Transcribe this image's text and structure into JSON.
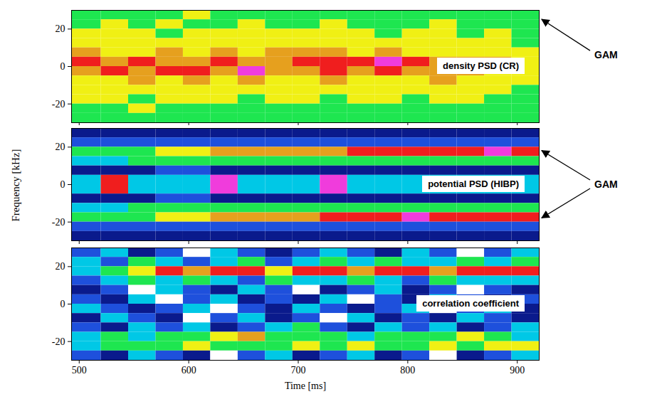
{
  "chart_data": {
    "type": "heatmap",
    "xlabel": "Time [ms]",
    "ylabel": "Frequency [kHz]",
    "xlim": [
      493,
      920
    ],
    "xticks": [
      500,
      600,
      700,
      800,
      900
    ],
    "ylim": [
      -30,
      30
    ],
    "yticks": [
      -20,
      0,
      20
    ],
    "x_edges": [
      493,
      520,
      545,
      570,
      595,
      620,
      645,
      670,
      695,
      720,
      745,
      770,
      795,
      820,
      845,
      870,
      895,
      920
    ],
    "y_edges": [
      30,
      25,
      20,
      15,
      10,
      5,
      0,
      -5,
      -10,
      -15,
      -20,
      -25,
      -30
    ],
    "zlim": [
      0,
      8
    ],
    "colors": [
      "#ffffff",
      "#0a1a8c",
      "#1e50dc",
      "#00c8e6",
      "#1ee650",
      "#f0f014",
      "#e6a01e",
      "#f01e1e",
      "#f03cdc"
    ],
    "panels": [
      {
        "label": "density PSD (CR)",
        "annotation": {
          "text": "GAM",
          "targets": [
            25
          ]
        },
        "cells": [
          [
            4,
            4,
            4,
            4,
            5,
            4,
            4,
            4,
            4,
            4,
            4,
            4,
            4,
            4,
            4,
            4,
            4
          ],
          [
            4,
            5,
            4,
            5,
            4,
            4,
            5,
            4,
            4,
            5,
            4,
            4,
            4,
            5,
            4,
            4,
            4
          ],
          [
            5,
            5,
            5,
            4,
            5,
            5,
            5,
            5,
            5,
            5,
            5,
            4,
            5,
            5,
            4,
            5,
            4
          ],
          [
            5,
            5,
            5,
            5,
            5,
            5,
            5,
            5,
            5,
            5,
            5,
            5,
            5,
            5,
            5,
            5,
            4
          ],
          [
            6,
            5,
            5,
            6,
            5,
            6,
            5,
            6,
            6,
            6,
            5,
            6,
            5,
            5,
            5,
            5,
            5
          ],
          [
            7,
            6,
            7,
            6,
            6,
            7,
            6,
            6,
            7,
            7,
            7,
            8,
            7,
            6,
            6,
            6,
            5
          ],
          [
            6,
            7,
            6,
            7,
            7,
            6,
            8,
            6,
            6,
            7,
            6,
            7,
            6,
            6,
            6,
            5,
            5
          ],
          [
            5,
            5,
            6,
            5,
            6,
            5,
            6,
            5,
            5,
            6,
            5,
            5,
            5,
            6,
            5,
            5,
            5
          ],
          [
            5,
            5,
            5,
            5,
            5,
            5,
            5,
            5,
            5,
            5,
            5,
            5,
            5,
            5,
            5,
            5,
            4
          ],
          [
            5,
            5,
            4,
            5,
            5,
            5,
            4,
            5,
            5,
            4,
            5,
            5,
            4,
            5,
            5,
            4,
            4
          ],
          [
            4,
            4,
            5,
            4,
            4,
            4,
            4,
            4,
            4,
            4,
            4,
            4,
            4,
            4,
            4,
            4,
            4
          ],
          [
            4,
            4,
            4,
            4,
            4,
            4,
            4,
            4,
            4,
            4,
            4,
            4,
            4,
            4,
            4,
            4,
            4
          ]
        ]
      },
      {
        "label": "potential PSD (HIBP)",
        "annotation": {
          "text": "GAM",
          "targets": [
            18,
            -18
          ]
        },
        "cells": [
          [
            1,
            1,
            1,
            1,
            1,
            1,
            1,
            1,
            1,
            1,
            1,
            1,
            1,
            1,
            1,
            1,
            1
          ],
          [
            2,
            2,
            2,
            2,
            2,
            2,
            2,
            2,
            2,
            2,
            2,
            2,
            2,
            2,
            2,
            2,
            2
          ],
          [
            4,
            4,
            4,
            5,
            5,
            6,
            6,
            6,
            6,
            6,
            7,
            7,
            7,
            7,
            7,
            8,
            7
          ],
          [
            3,
            3,
            4,
            4,
            4,
            4,
            4,
            4,
            4,
            4,
            4,
            4,
            4,
            4,
            4,
            4,
            4
          ],
          [
            1,
            1,
            1,
            2,
            2,
            1,
            1,
            1,
            1,
            1,
            1,
            1,
            1,
            1,
            1,
            1,
            1
          ],
          [
            3,
            7,
            3,
            3,
            3,
            8,
            3,
            3,
            3,
            8,
            3,
            3,
            3,
            3,
            3,
            3,
            3
          ],
          [
            3,
            7,
            3,
            3,
            3,
            8,
            3,
            3,
            3,
            8,
            3,
            3,
            3,
            3,
            3,
            3,
            3
          ],
          [
            1,
            1,
            1,
            2,
            2,
            1,
            1,
            1,
            1,
            1,
            1,
            1,
            1,
            1,
            1,
            1,
            1
          ],
          [
            3,
            3,
            4,
            4,
            4,
            4,
            4,
            4,
            4,
            4,
            4,
            4,
            4,
            4,
            4,
            4,
            4
          ],
          [
            4,
            4,
            4,
            5,
            5,
            6,
            6,
            6,
            6,
            7,
            7,
            7,
            8,
            7,
            7,
            7,
            7
          ],
          [
            2,
            2,
            2,
            2,
            2,
            2,
            2,
            2,
            2,
            2,
            2,
            2,
            2,
            2,
            2,
            2,
            2
          ],
          [
            1,
            1,
            1,
            1,
            1,
            1,
            1,
            1,
            1,
            1,
            1,
            1,
            1,
            1,
            1,
            1,
            1
          ]
        ]
      },
      {
        "label": "correlation coefficient",
        "cells": [
          [
            2,
            3,
            1,
            2,
            0,
            3,
            2,
            1,
            2,
            3,
            2,
            1,
            3,
            2,
            0,
            2,
            3
          ],
          [
            3,
            2,
            4,
            3,
            2,
            3,
            4,
            2,
            3,
            4,
            3,
            4,
            3,
            3,
            4,
            3,
            4
          ],
          [
            3,
            4,
            5,
            7,
            6,
            7,
            7,
            5,
            7,
            7,
            6,
            7,
            7,
            6,
            7,
            7,
            7
          ],
          [
            2,
            3,
            4,
            3,
            4,
            3,
            2,
            4,
            3,
            3,
            4,
            3,
            2,
            4,
            3,
            3,
            3
          ],
          [
            1,
            2,
            0,
            3,
            2,
            1,
            3,
            2,
            0,
            1,
            2,
            3,
            1,
            2,
            0,
            2,
            1
          ],
          [
            2,
            1,
            3,
            0,
            2,
            3,
            1,
            2,
            1,
            3,
            0,
            2,
            1,
            3,
            2,
            1,
            2
          ],
          [
            3,
            2,
            1,
            2,
            3,
            0,
            2,
            1,
            3,
            2,
            1,
            2,
            3,
            0,
            2,
            3,
            1
          ],
          [
            1,
            3,
            2,
            1,
            0,
            2,
            3,
            1,
            2,
            0,
            3,
            1,
            2,
            1,
            3,
            2,
            1
          ],
          [
            2,
            1,
            3,
            2,
            3,
            1,
            2,
            3,
            4,
            2,
            1,
            3,
            2,
            3,
            1,
            2,
            3
          ],
          [
            3,
            4,
            3,
            4,
            4,
            5,
            6,
            4,
            4,
            4,
            3,
            4,
            4,
            4,
            5,
            4,
            3
          ],
          [
            3,
            4,
            4,
            4,
            5,
            4,
            4,
            4,
            5,
            4,
            5,
            4,
            4,
            5,
            4,
            5,
            5
          ],
          [
            2,
            1,
            3,
            2,
            1,
            0,
            2,
            3,
            1,
            2,
            3,
            1,
            2,
            0,
            1,
            2,
            3
          ]
        ]
      }
    ]
  }
}
